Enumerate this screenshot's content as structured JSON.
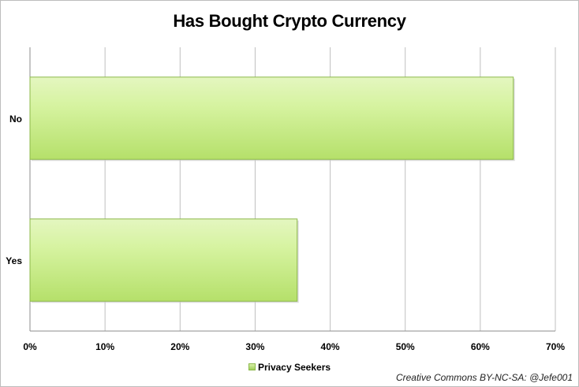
{
  "chart_data": {
    "type": "bar",
    "orientation": "horizontal",
    "title": "Has Bought Crypto Currency",
    "categories": [
      "No",
      "Yes"
    ],
    "series": [
      {
        "name": "Privacy Seekers",
        "values": [
          64.4,
          35.6
        ]
      }
    ],
    "x_ticks": [
      "0%",
      "10%",
      "20%",
      "30%",
      "40%",
      "50%",
      "60%",
      "70%"
    ],
    "xlim": [
      0,
      70
    ],
    "grid": true,
    "legend_position": "bottom",
    "colors": {
      "bar_fill": "#c9ec8a",
      "bar_stroke": "#8cb84a",
      "grid": "#bfbfbf"
    }
  },
  "footer": {
    "credit": "Creative Commons BY-NC-SA: @Jefe001"
  }
}
